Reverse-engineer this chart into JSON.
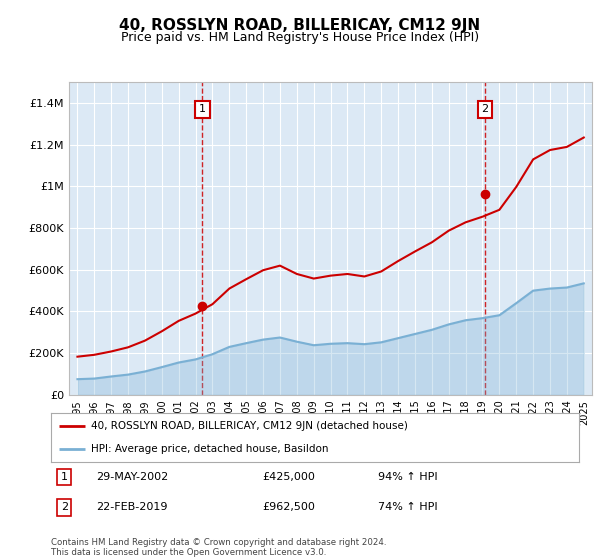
{
  "title": "40, ROSSLYN ROAD, BILLERICAY, CM12 9JN",
  "subtitle": "Price paid vs. HM Land Registry's House Price Index (HPI)",
  "title_fontsize": 11,
  "subtitle_fontsize": 9,
  "bg_color": "#dce9f5",
  "plot_bg_color": "#dce9f5",
  "fig_bg_color": "#ffffff",
  "grid_color": "#ffffff",
  "red_color": "#cc0000",
  "blue_color": "#7ab0d4",
  "dashed_line_color": "#cc0000",
  "marker_box_color": "#cc0000",
  "ylim": [
    0,
    1500000
  ],
  "yticks": [
    0,
    200000,
    400000,
    600000,
    800000,
    1000000,
    1200000,
    1400000
  ],
  "ytick_labels": [
    "£0",
    "£200K",
    "£400K",
    "£600K",
    "£800K",
    "£1M",
    "£1.2M",
    "£1.4M"
  ],
  "xlim_start": 1994.5,
  "xlim_end": 2025.5,
  "transaction1_year": 2002.4,
  "transaction1_price": 425000,
  "transaction2_year": 2019.15,
  "transaction2_price": 962500,
  "legend_label_red": "40, ROSSLYN ROAD, BILLERICAY, CM12 9JN (detached house)",
  "legend_label_blue": "HPI: Average price, detached house, Basildon",
  "table_date1": "29-MAY-2002",
  "table_price1": "£425,000",
  "table_hpi1": "94% ↑ HPI",
  "table_date2": "22-FEB-2019",
  "table_price2": "£962,500",
  "table_hpi2": "74% ↑ HPI",
  "footer_text": "Contains HM Land Registry data © Crown copyright and database right 2024.\nThis data is licensed under the Open Government Licence v3.0.",
  "hpi_years": [
    1995,
    1996,
    1997,
    1998,
    1999,
    2000,
    2001,
    2002,
    2003,
    2004,
    2005,
    2006,
    2007,
    2008,
    2009,
    2010,
    2011,
    2012,
    2013,
    2014,
    2015,
    2016,
    2017,
    2018,
    2019,
    2020,
    2021,
    2022,
    2023,
    2024,
    2025
  ],
  "hpi_blue": [
    75000,
    78000,
    88000,
    97000,
    112000,
    133000,
    155000,
    170000,
    195000,
    230000,
    248000,
    265000,
    275000,
    255000,
    238000,
    245000,
    248000,
    243000,
    252000,
    272000,
    292000,
    312000,
    338000,
    358000,
    368000,
    382000,
    440000,
    500000,
    510000,
    515000,
    535000
  ],
  "hpi_red": [
    183000,
    192000,
    208000,
    228000,
    260000,
    305000,
    355000,
    390000,
    435000,
    510000,
    555000,
    598000,
    620000,
    580000,
    558000,
    572000,
    580000,
    568000,
    592000,
    642000,
    688000,
    732000,
    788000,
    828000,
    855000,
    888000,
    998000,
    1130000,
    1175000,
    1190000,
    1235000
  ]
}
